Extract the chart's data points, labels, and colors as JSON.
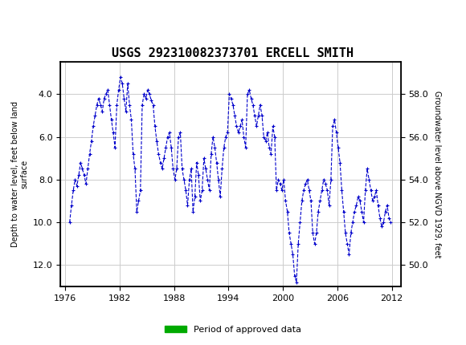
{
  "title": "USGS 292310082373701 ERCELL SMITH",
  "ylabel_left": "Depth to water level, feet below land\nsurface",
  "ylabel_right": "Groundwater level above NGVD 1929, feet",
  "xlabel": "",
  "ylim_left": [
    13.0,
    2.5
  ],
  "ylim_right": [
    49.0,
    59.5
  ],
  "xlim": [
    1975.5,
    2013.0
  ],
  "yticks_left": [
    4.0,
    6.0,
    8.0,
    10.0,
    12.0
  ],
  "yticks_right": [
    50.0,
    52.0,
    54.0,
    56.0,
    58.0
  ],
  "xticks": [
    1976,
    1982,
    1988,
    1994,
    2000,
    2006,
    2012
  ],
  "line_color": "#0000CC",
  "marker": "+",
  "linestyle": "--",
  "background_color": "#ffffff",
  "header_color": "#1a6b3c",
  "grid_color": "#cccccc",
  "approved_bar_color": "#00aa00",
  "legend_label": "Period of approved data",
  "x": [
    1976.5,
    1976.7,
    1976.9,
    1977.1,
    1977.3,
    1977.5,
    1977.7,
    1977.9,
    1978.1,
    1978.3,
    1978.5,
    1978.7,
    1978.9,
    1979.1,
    1979.3,
    1979.5,
    1979.7,
    1979.9,
    1980.1,
    1980.3,
    1980.5,
    1980.7,
    1980.9,
    1981.1,
    1981.3,
    1981.5,
    1981.7,
    1981.9,
    1982.1,
    1982.3,
    1982.5,
    1982.7,
    1982.9,
    1983.1,
    1983.3,
    1983.5,
    1983.7,
    1983.9,
    1984.1,
    1984.3,
    1984.5,
    1984.7,
    1984.9,
    1985.1,
    1985.3,
    1985.5,
    1985.7,
    1985.9,
    1986.1,
    1986.3,
    1986.5,
    1986.7,
    1986.9,
    1987.1,
    1987.3,
    1987.5,
    1987.7,
    1987.9,
    1988.1,
    1988.3,
    1988.5,
    1988.7,
    1988.9,
    1989.1,
    1989.3,
    1989.5,
    1989.7,
    1989.9,
    1990.1,
    1990.3,
    1990.5,
    1990.7,
    1990.9,
    1991.1,
    1991.3,
    1991.5,
    1991.7,
    1991.9,
    1992.1,
    1992.3,
    1992.5,
    1992.7,
    1992.9,
    1993.1,
    1993.3,
    1993.5,
    1993.7,
    1993.9,
    1994.1,
    1994.3,
    1994.5,
    1994.7,
    1994.9,
    1995.1,
    1995.3,
    1995.5,
    1995.7,
    1995.9,
    1996.1,
    1996.3,
    1996.5,
    1996.7,
    1996.9,
    1997.1,
    1997.3,
    1997.5,
    1997.7,
    1997.9,
    1998.1,
    1998.3,
    1998.5,
    1998.7,
    1998.9,
    1999.1,
    1999.3,
    1999.5,
    1999.7,
    1999.9,
    2000.1,
    2000.3,
    2000.5,
    2000.7,
    2000.9,
    2001.1,
    2001.3,
    2001.5,
    2001.7,
    2001.9,
    2002.1,
    2002.3,
    2002.5,
    2002.7,
    2002.9,
    2003.1,
    2003.3,
    2003.5,
    2003.7,
    2003.9,
    2004.1,
    2004.3,
    2004.5,
    2004.7,
    2004.9,
    2005.1,
    2005.3,
    2005.5,
    2005.7,
    2005.9,
    2006.1,
    2006.3,
    2006.5,
    2006.7,
    2006.9,
    2007.1,
    2007.3,
    2007.5,
    2007.7,
    2007.9,
    2008.1,
    2008.3,
    2008.5,
    2008.7,
    2008.9,
    2009.1,
    2009.3,
    2009.5,
    2009.7,
    2009.9,
    2010.1,
    2010.3,
    2010.5,
    2010.7,
    2010.9,
    2011.1,
    2011.3,
    2011.5,
    2011.7,
    2011.9
  ],
  "y": [
    10.0,
    9.2,
    8.5,
    8.0,
    8.3,
    7.8,
    7.2,
    7.5,
    7.8,
    8.2,
    7.5,
    6.8,
    6.2,
    5.5,
    5.0,
    4.5,
    4.2,
    4.5,
    4.8,
    4.2,
    4.0,
    3.8,
    4.5,
    5.2,
    5.8,
    6.5,
    4.5,
    3.8,
    3.2,
    3.5,
    4.2,
    4.8,
    3.5,
    4.5,
    5.2,
    6.8,
    7.5,
    9.5,
    9.0,
    8.5,
    4.5,
    4.0,
    4.2,
    3.8,
    4.0,
    4.3,
    4.5,
    5.5,
    6.2,
    6.8,
    7.2,
    7.5,
    7.0,
    6.5,
    6.0,
    5.8,
    6.5,
    7.5,
    8.0,
    7.5,
    6.0,
    5.8,
    7.5,
    8.0,
    8.5,
    9.2,
    8.0,
    7.5,
    9.5,
    8.8,
    7.2,
    7.8,
    9.0,
    8.5,
    7.0,
    7.5,
    8.0,
    8.5,
    6.8,
    6.0,
    6.5,
    7.2,
    8.0,
    8.8,
    7.5,
    6.5,
    6.0,
    5.8,
    4.0,
    4.2,
    4.5,
    5.0,
    5.5,
    5.8,
    5.5,
    5.2,
    6.0,
    6.5,
    4.0,
    3.8,
    4.2,
    4.5,
    5.0,
    5.5,
    5.0,
    4.5,
    5.0,
    6.0,
    6.2,
    5.8,
    6.5,
    6.8,
    5.5,
    6.0,
    8.5,
    8.0,
    8.2,
    8.5,
    8.0,
    9.0,
    9.5,
    10.5,
    11.0,
    11.5,
    12.5,
    12.8,
    11.0,
    10.0,
    9.0,
    8.5,
    8.2,
    8.0,
    8.5,
    9.0,
    10.5,
    11.0,
    10.5,
    9.5,
    9.0,
    8.5,
    8.0,
    8.2,
    8.5,
    9.2,
    8.0,
    5.5,
    5.2,
    5.8,
    6.5,
    7.2,
    8.5,
    9.5,
    10.5,
    11.0,
    11.5,
    10.5,
    10.0,
    9.5,
    9.2,
    8.8,
    9.0,
    9.5,
    10.0,
    8.5,
    7.5,
    8.0,
    8.5,
    9.0,
    8.8,
    8.5,
    9.2,
    9.8,
    10.2,
    10.0,
    9.5,
    9.2,
    9.8,
    10.0
  ]
}
